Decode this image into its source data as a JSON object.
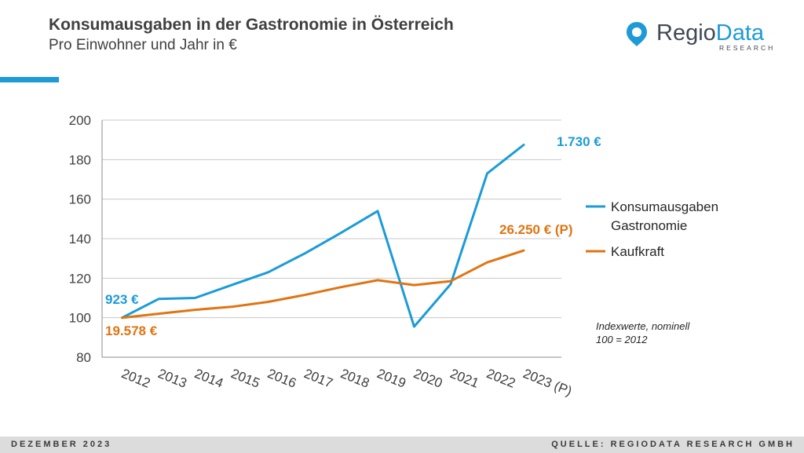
{
  "header": {
    "title": "Konsumausgaben in der Gastronomie in Österreich",
    "subtitle": "Pro Einwohner und Jahr in €",
    "accent_color": "#1e9ad6"
  },
  "logo": {
    "word_part1": "Regio",
    "word_part2": "Data",
    "subtext": "RESEARCH",
    "icon": "location-pin-icon"
  },
  "footer": {
    "left": "DEZEMBER 2023",
    "right": "QUELLE: REGIODATA RESEARCH GMBH"
  },
  "chart_data": {
    "type": "line",
    "categories": [
      "2012",
      "2013",
      "2014",
      "2015",
      "2016",
      "2017",
      "2018",
      "2019",
      "2020",
      "2021",
      "2022",
      "2023 (P)"
    ],
    "ylim": [
      80,
      200
    ],
    "yticks": [
      80,
      100,
      120,
      140,
      160,
      180,
      200
    ],
    "grid": true,
    "legend_position": "right",
    "series": [
      {
        "name": "Konsumausgaben Gastronomie",
        "legend_lines": [
          "Konsumausgaben",
          "Gastronomie"
        ],
        "color": "#1b9bd7",
        "values": [
          100,
          109.5,
          110,
          116.5,
          123,
          132.5,
          143,
          154,
          95.5,
          117,
          173,
          187.5
        ],
        "start_label": "923 €",
        "end_label": "1.730 €"
      },
      {
        "name": "Kaufkraft",
        "legend_lines": [
          "Kaufkraft"
        ],
        "color": "#e07412",
        "values": [
          100,
          102,
          104,
          105.5,
          108,
          111.5,
          115.5,
          119,
          116.5,
          118.5,
          128,
          134
        ],
        "start_label": "19.578 €",
        "end_label": "26.250 € (P)"
      }
    ],
    "annotation": [
      "Indexwerte, nominell",
      "100 = 2012"
    ]
  }
}
